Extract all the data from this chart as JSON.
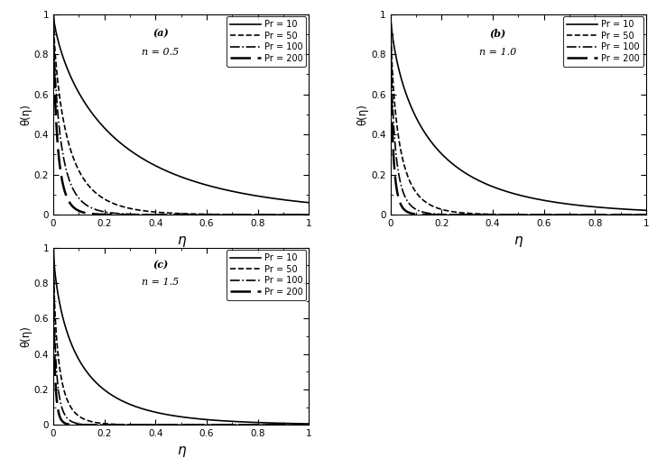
{
  "subplots": [
    {
      "label": "(a)",
      "n_label": "n = 0.5",
      "n": 0.5
    },
    {
      "label": "(b)",
      "n_label": "n = 1.0",
      "n": 1.0
    },
    {
      "label": "(c)",
      "n_label": "n = 1.5",
      "n": 1.5
    }
  ],
  "Pr_values": [
    10,
    50,
    100,
    200
  ],
  "legend_labels": [
    "Pr = 10",
    "Pr = 50",
    "Pr = 100",
    "Pr = 200"
  ],
  "eta_max": 1.0,
  "theta_max": 1.0,
  "xlabel": "η",
  "ylabel": "θ(η)",
  "xticks": [
    0.0,
    0.2,
    0.4,
    0.6,
    0.8,
    1.0
  ],
  "yticks": [
    0.0,
    0.2,
    0.4,
    0.6,
    0.8,
    1.0
  ],
  "background_color": "#ffffff",
  "line_color": "#000000",
  "curve_params": {
    "0.5": {
      "10": {
        "c": 2.8,
        "p": 0.75
      },
      "50": {
        "c": 8.5,
        "p": 0.75
      },
      "100": {
        "c": 14.0,
        "p": 0.75
      },
      "200": {
        "c": 22.0,
        "p": 0.75
      }
    },
    "1.0": {
      "10": {
        "c": 3.8,
        "p": 0.72
      },
      "50": {
        "c": 11.5,
        "p": 0.72
      },
      "100": {
        "c": 19.0,
        "p": 0.72
      },
      "200": {
        "c": 30.0,
        "p": 0.72
      }
    },
    "1.5": {
      "10": {
        "c": 5.0,
        "p": 0.7
      },
      "50": {
        "c": 15.0,
        "p": 0.7
      },
      "100": {
        "c": 25.0,
        "p": 0.7
      },
      "200": {
        "c": 40.0,
        "p": 0.7
      }
    }
  }
}
